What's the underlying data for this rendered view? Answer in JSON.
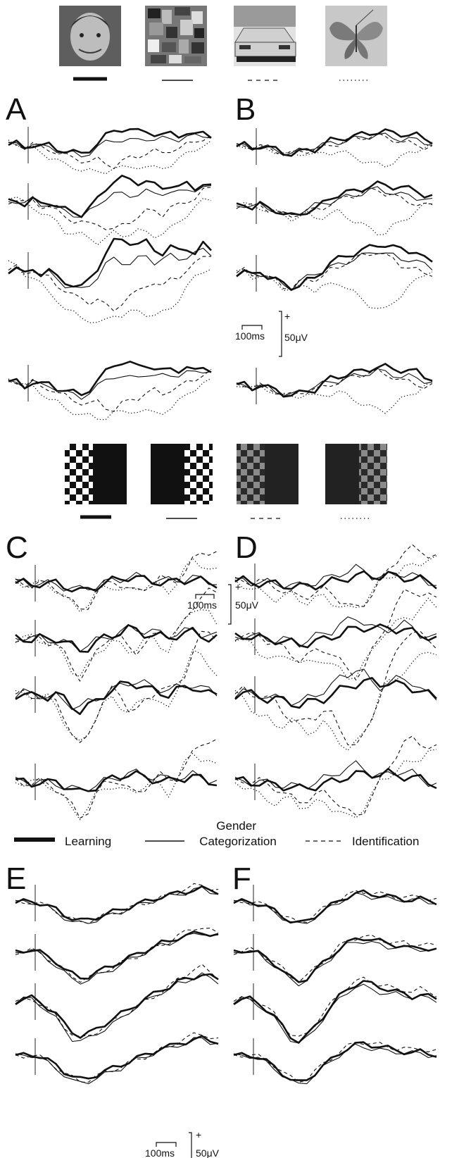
{
  "top_stimuli": {
    "items": [
      {
        "name": "face-photo",
        "line_style": "thick"
      },
      {
        "name": "scrambled-pattern",
        "line_style": "thin"
      },
      {
        "name": "car-photo",
        "line_style": "dashed"
      },
      {
        "name": "butterfly-photo",
        "line_style": "dotted"
      }
    ]
  },
  "checker_stimuli": {
    "items": [
      {
        "name": "checker-left-high-contrast",
        "line_style": "thick"
      },
      {
        "name": "checker-right-high-contrast",
        "line_style": "thin"
      },
      {
        "name": "checker-left-low-contrast",
        "line_style": "dashed"
      },
      {
        "name": "checker-right-low-contrast",
        "line_style": "dotted"
      }
    ]
  },
  "legend": {
    "learning": "Learning",
    "gender_categorization": "Gender\nCategorization",
    "identification": "Identification"
  },
  "scale_bars": [
    {
      "time": "100ms",
      "plus": "+",
      "amp": "50μV"
    },
    {
      "time": "100ms",
      "plus": "+",
      "amp": "50μV"
    },
    {
      "time": "100ms",
      "plus": "+",
      "amp": "50μV"
    }
  ],
  "panels": [
    {
      "letter": "A"
    },
    {
      "letter": "B"
    },
    {
      "letter": "C"
    },
    {
      "letter": "D"
    },
    {
      "letter": "E"
    },
    {
      "letter": "F"
    }
  ],
  "chart_data": {
    "type": "line",
    "panels": {
      "A": {
        "traces": [
          {
            "style": "thick",
            "values": [
              0,
              0.02,
              -0.03,
              0.01,
              -0.02,
              0,
              -0.05,
              -0.08,
              -0.1,
              -0.12,
              -0.06,
              0.02,
              0.12,
              0.2,
              0.22,
              0.2,
              0.18,
              0.2,
              0.15,
              0.12,
              0.16,
              0.14,
              0.16,
              0.12,
              0.18,
              0.14
            ]
          },
          {
            "style": "thin",
            "values": [
              0,
              0.01,
              -0.02,
              0.02,
              -0.03,
              -0.02,
              -0.06,
              -0.1,
              -0.12,
              -0.14,
              -0.1,
              -0.04,
              0.04,
              0.08,
              0.06,
              0.05,
              0.08,
              0.1,
              0.06,
              0.08,
              0.1,
              0.08,
              0.1,
              0.12,
              0.14,
              0.12
            ]
          },
          {
            "style": "dashed",
            "values": [
              0,
              0.02,
              -0.02,
              0.01,
              -0.04,
              -0.05,
              -0.1,
              -0.14,
              -0.18,
              -0.2,
              -0.22,
              -0.2,
              -0.25,
              -0.28,
              -0.22,
              -0.18,
              -0.15,
              -0.1,
              -0.08,
              -0.12,
              -0.06,
              -0.04,
              0,
              0.04,
              0.1,
              0.12
            ]
          },
          {
            "style": "dotted",
            "values": [
              0.05,
              0.03,
              -0.02,
              -0.05,
              -0.1,
              -0.15,
              -0.2,
              -0.28,
              -0.3,
              -0.32,
              -0.35,
              -0.38,
              -0.35,
              -0.3,
              -0.32,
              -0.3,
              -0.28,
              -0.3,
              -0.32,
              -0.3,
              -0.26,
              -0.2,
              -0.12,
              -0.05,
              0,
              0.02
            ]
          }
        ]
      },
      "B": {
        "traces": [
          {
            "style": "thick",
            "values": [
              0,
              0.02,
              -0.02,
              0.01,
              -0.02,
              -0.04,
              -0.08,
              -0.1,
              -0.08,
              -0.05,
              -0.04,
              0.02,
              0.08,
              0.1,
              0.12,
              0.14,
              0.16,
              0.18,
              0.2,
              0.2,
              0.18,
              0.17,
              0.16,
              0.15,
              0.1,
              0.08
            ]
          },
          {
            "style": "thin",
            "values": [
              0,
              0.01,
              -0.01,
              0,
              -0.02,
              -0.05,
              -0.08,
              -0.1,
              -0.06,
              -0.03,
              0,
              0.02,
              0.04,
              0.06,
              0.08,
              0.1,
              0.12,
              0.14,
              0.16,
              0.14,
              0.12,
              0.1,
              0.1,
              0.08,
              0.06,
              0.04
            ]
          },
          {
            "style": "dashed",
            "values": [
              0,
              0.02,
              -0.01,
              0,
              -0.03,
              -0.05,
              -0.09,
              -0.1,
              -0.07,
              -0.05,
              -0.04,
              -0.02,
              0.02,
              0.04,
              0.08,
              0.1,
              0.12,
              0.14,
              0.15,
              0.12,
              0.1,
              0.06,
              0.04,
              0.02,
              0,
              0
            ]
          },
          {
            "style": "dotted",
            "values": [
              0,
              0.02,
              -0.02,
              -0.02,
              -0.04,
              -0.06,
              -0.1,
              -0.12,
              -0.1,
              -0.08,
              -0.12,
              -0.1,
              -0.08,
              -0.06,
              -0.1,
              -0.14,
              -0.18,
              -0.22,
              -0.25,
              -0.26,
              -0.2,
              -0.15,
              -0.1,
              -0.05,
              0,
              0.02
            ]
          }
        ]
      },
      "C": {
        "traces": [
          {
            "style": "thick",
            "values": [
              0,
              0,
              -0.01,
              0,
              -0.01,
              0,
              -0.02,
              -0.05,
              -0.08,
              -0.06,
              -0.03,
              0,
              0.02,
              0.04,
              0.06,
              0.05,
              0.03,
              0.02,
              0.01,
              0,
              0.02,
              0.03,
              0.04,
              0.02,
              0,
              0
            ]
          },
          {
            "style": "thin",
            "values": [
              0,
              0.01,
              0,
              0,
              -0.01,
              -0.01,
              -0.03,
              -0.05,
              -0.06,
              -0.04,
              -0.02,
              0,
              0.02,
              0.04,
              0.06,
              0.06,
              0.05,
              0.04,
              0.03,
              0.02,
              0.03,
              0.04,
              0.05,
              0.03,
              0.02,
              0.01
            ]
          },
          {
            "style": "dashed",
            "values": [
              0,
              0,
              -0.01,
              0,
              -0.02,
              -0.04,
              -0.1,
              -0.18,
              -0.25,
              -0.2,
              -0.1,
              -0.02,
              0.02,
              0,
              -0.06,
              -0.08,
              -0.04,
              0,
              0.04,
              0.02,
              0.04,
              0.1,
              0.2,
              0.28,
              0.3,
              0.28
            ]
          },
          {
            "style": "dotted",
            "values": [
              0,
              0,
              0,
              -0.01,
              -0.02,
              -0.05,
              -0.12,
              -0.2,
              -0.24,
              -0.18,
              -0.1,
              -0.05,
              -0.02,
              -0.05,
              -0.08,
              -0.06,
              -0.02,
              0,
              -0.04,
              -0.08,
              0.02,
              0.12,
              0.2,
              0.18,
              0.15,
              0.1
            ]
          }
        ]
      },
      "D": {
        "traces": [
          {
            "style": "thick",
            "values": [
              0,
              0.01,
              0,
              -0.01,
              -0.02,
              -0.02,
              -0.03,
              -0.04,
              -0.05,
              -0.04,
              -0.03,
              -0.02,
              0,
              0.02,
              0.04,
              0.05,
              0.06,
              0.06,
              0.05,
              0.06,
              0.05,
              0.04,
              0.03,
              0.02,
              0,
              -0.02
            ]
          },
          {
            "style": "thin",
            "values": [
              0,
              0.01,
              0,
              0,
              -0.01,
              -0.02,
              -0.02,
              -0.03,
              -0.04,
              -0.02,
              0,
              0.02,
              0.04,
              0.08,
              0.1,
              0.12,
              0.1,
              0.06,
              0.04,
              0.05,
              0.07,
              0.08,
              0.06,
              0.02,
              0,
              -0.01
            ]
          },
          {
            "style": "dashed",
            "values": [
              0,
              0.02,
              0,
              0,
              -0.02,
              -0.04,
              -0.08,
              -0.12,
              -0.14,
              -0.12,
              -0.1,
              -0.08,
              -0.1,
              -0.16,
              -0.22,
              -0.25,
              -0.2,
              -0.1,
              0,
              0.1,
              0.2,
              0.28,
              0.3,
              0.28,
              0.26,
              0.24
            ]
          },
          {
            "style": "dotted",
            "values": [
              0,
              -0.02,
              -0.06,
              -0.1,
              -0.12,
              -0.15,
              -0.14,
              -0.12,
              -0.16,
              -0.18,
              -0.16,
              -0.14,
              -0.18,
              -0.22,
              -0.26,
              -0.24,
              -0.18,
              -0.1,
              0,
              0.05,
              0.08,
              0.12,
              0.14,
              0.18,
              0.22,
              0.2
            ]
          }
        ]
      },
      "E": {
        "traces": [
          {
            "style": "thick",
            "values": [
              0,
              0.02,
              0.03,
              0,
              -0.05,
              -0.1,
              -0.18,
              -0.24,
              -0.28,
              -0.26,
              -0.22,
              -0.18,
              -0.14,
              -0.1,
              -0.06,
              -0.02,
              0.02,
              0.06,
              0.1,
              0.12,
              0.16,
              0.18,
              0.2,
              0.22,
              0.2,
              0.18
            ]
          },
          {
            "style": "thin",
            "values": [
              0,
              0.02,
              0.02,
              -0.02,
              -0.08,
              -0.14,
              -0.22,
              -0.3,
              -0.32,
              -0.3,
              -0.26,
              -0.22,
              -0.18,
              -0.14,
              -0.08,
              -0.04,
              0,
              0.04,
              0.08,
              0.1,
              0.14,
              0.16,
              0.2,
              0.22,
              0.18,
              0.16
            ]
          },
          {
            "style": "dashed",
            "values": [
              0,
              0.01,
              0.02,
              -0.01,
              -0.06,
              -0.12,
              -0.2,
              -0.26,
              -0.3,
              -0.28,
              -0.24,
              -0.2,
              -0.16,
              -0.12,
              -0.08,
              -0.04,
              0,
              0.04,
              0.08,
              0.12,
              0.18,
              0.22,
              0.26,
              0.28,
              0.24,
              0.2
            ]
          }
        ]
      },
      "F": {
        "traces": [
          {
            "style": "thick",
            "values": [
              0,
              0.02,
              0.02,
              -0.01,
              -0.06,
              -0.12,
              -0.2,
              -0.28,
              -0.32,
              -0.28,
              -0.2,
              -0.12,
              -0.04,
              0.04,
              0.1,
              0.14,
              0.16,
              0.14,
              0.12,
              0.1,
              0.08,
              0.06,
              0.04,
              0.06,
              0.04,
              0.02
            ]
          },
          {
            "style": "thin",
            "values": [
              0,
              0.02,
              0.01,
              -0.02,
              -0.08,
              -0.14,
              -0.22,
              -0.3,
              -0.34,
              -0.3,
              -0.22,
              -0.14,
              -0.06,
              0.02,
              0.08,
              0.12,
              0.12,
              0.1,
              0.08,
              0.06,
              0.06,
              0.05,
              0.04,
              0.04,
              0.02,
              0.01
            ]
          },
          {
            "style": "dashed",
            "values": [
              0,
              0.02,
              0.03,
              0,
              -0.05,
              -0.1,
              -0.18,
              -0.26,
              -0.3,
              -0.26,
              -0.18,
              -0.1,
              -0.02,
              0.06,
              0.12,
              0.16,
              0.18,
              0.16,
              0.14,
              0.12,
              0.1,
              0.1,
              0.08,
              0.1,
              0.08,
              0.06
            ]
          }
        ]
      }
    }
  }
}
